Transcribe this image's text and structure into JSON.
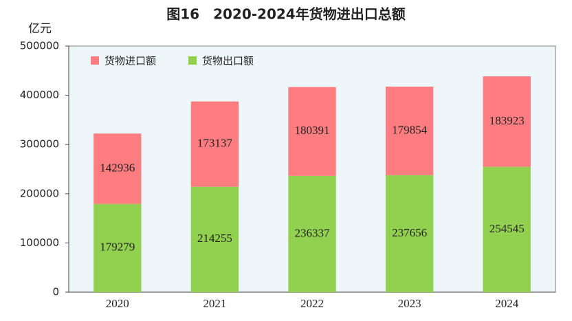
{
  "chart_data": {
    "type": "stacked_bar",
    "title": "图16　2020-2024年货物进出口总额",
    "y_unit": "亿元",
    "categories": [
      "2020",
      "2021",
      "2022",
      "2023",
      "2024"
    ],
    "series": [
      {
        "name": "货物出口额",
        "color": "#92d050",
        "values": [
          179279,
          214255,
          236337,
          237656,
          254545
        ]
      },
      {
        "name": "货物进口额",
        "color": "#ff7c80",
        "values": [
          142936,
          173137,
          180391,
          179854,
          183923
        ]
      }
    ],
    "ylim": [
      0,
      500000
    ],
    "yticks": [
      0,
      100000,
      200000,
      300000,
      400000,
      500000
    ],
    "legend": "top-left",
    "plot_background": "#edf7f9"
  }
}
